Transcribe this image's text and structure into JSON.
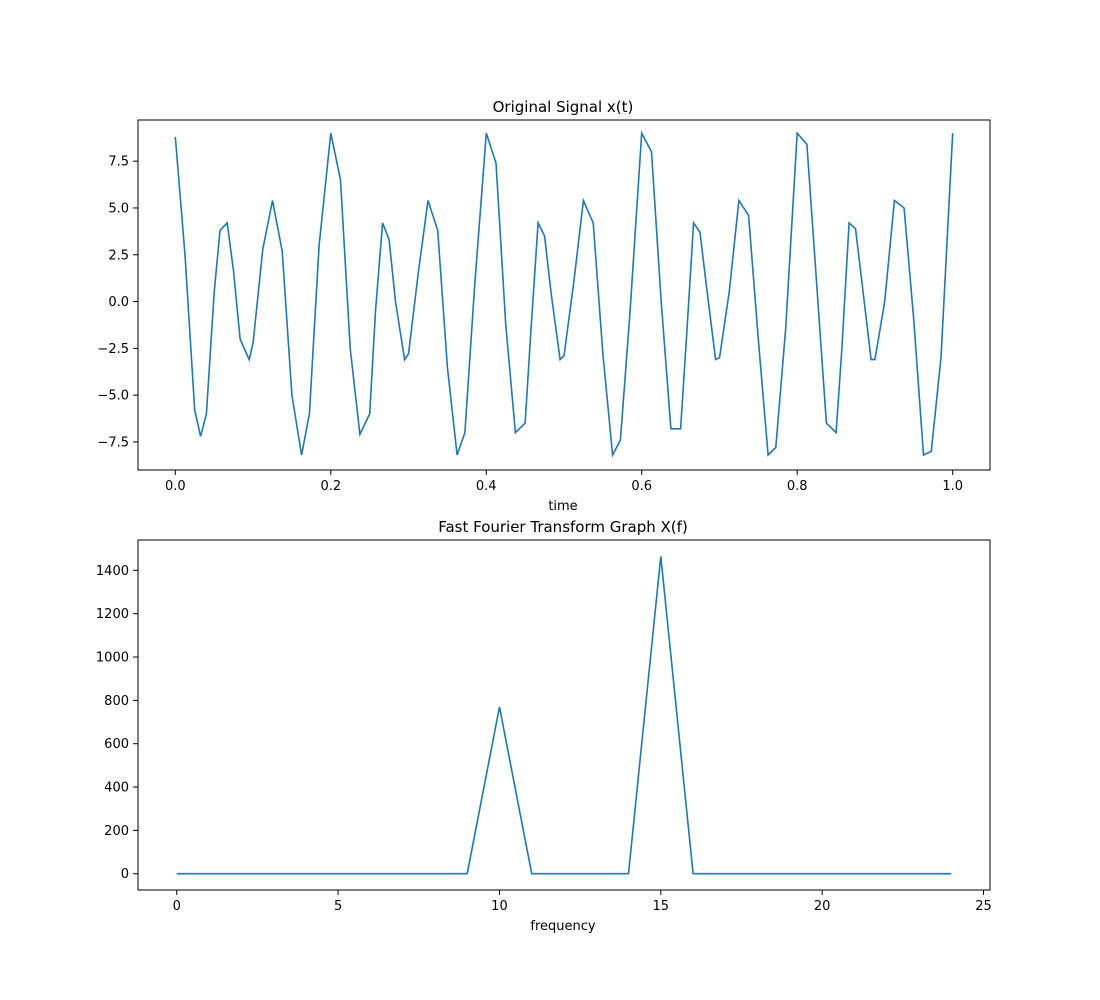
{
  "chart_data": [
    {
      "type": "line",
      "title": "Original Signal x(t)",
      "xlabel": "time",
      "ylabel": "",
      "xlim": [
        -0.048,
        1.048
      ],
      "ylim": [
        -9.0,
        9.7
      ],
      "xticks": [
        0.0,
        0.2,
        0.4,
        0.6,
        0.8,
        1.0
      ],
      "xtick_labels": [
        "0.0",
        "0.2",
        "0.4",
        "0.6",
        "0.8",
        "1.0"
      ],
      "yticks": [
        -7.5,
        -5.0,
        -2.5,
        0.0,
        2.5,
        5.0,
        7.5
      ],
      "ytick_labels": [
        "−7.5",
        "−5.0",
        "−2.5",
        "0.0",
        "2.5",
        "5.0",
        "7.5"
      ],
      "grid": false,
      "series": [
        {
          "color": "#1f77b4",
          "x": [
            0.0,
            0.0125,
            0.025,
            0.0325,
            0.04,
            0.05,
            0.0575,
            0.0667,
            0.075,
            0.0833,
            0.095,
            0.1,
            0.1125,
            0.125,
            0.1375,
            0.15,
            0.1625,
            0.1725,
            0.185,
            0.2,
            0.2125,
            0.225,
            0.2375,
            0.25,
            0.2575,
            0.2667,
            0.275,
            0.2833,
            0.295,
            0.3,
            0.3125,
            0.325,
            0.3375,
            0.35,
            0.3625,
            0.3725,
            0.385,
            0.4,
            0.4125,
            0.425,
            0.4375,
            0.45,
            0.4575,
            0.4667,
            0.475,
            0.4833,
            0.495,
            0.5,
            0.5125,
            0.525,
            0.5375,
            0.55,
            0.5625,
            0.5725,
            0.585,
            0.6,
            0.6125,
            0.625,
            0.6375,
            0.65,
            0.6575,
            0.6667,
            0.675,
            0.6833,
            0.695,
            0.7,
            0.7125,
            0.725,
            0.7375,
            0.75,
            0.7625,
            0.7725,
            0.785,
            0.8,
            0.8125,
            0.825,
            0.8375,
            0.85,
            0.8575,
            0.8667,
            0.875,
            0.8833,
            0.895,
            0.9,
            0.9125,
            0.925,
            0.9375,
            0.95,
            0.9625,
            0.9725,
            0.985,
            1.0
          ],
          "y": [
            8.8,
            2.5,
            -5.8,
            -7.2,
            -6.0,
            0.5,
            3.8,
            4.2,
            1.6,
            -2.0,
            -3.1,
            -2.2,
            2.8,
            5.4,
            2.7,
            -5.0,
            -8.2,
            -6.0,
            3.0,
            9.0,
            6.5,
            -2.5,
            -7.1,
            -6.0,
            -0.5,
            4.2,
            3.3,
            0.0,
            -3.1,
            -2.8,
            1.5,
            5.4,
            3.8,
            -3.5,
            -8.2,
            -7.0,
            0.8,
            9.0,
            7.4,
            -1.2,
            -7.0,
            -6.5,
            -1.5,
            4.2,
            3.5,
            0.5,
            -3.1,
            -2.9,
            1.0,
            5.4,
            4.2,
            -2.8,
            -8.2,
            -7.4,
            -0.5,
            9.0,
            8.0,
            0.0,
            -6.8,
            -6.8,
            -2.0,
            4.2,
            3.7,
            0.8,
            -3.1,
            -3.0,
            0.5,
            5.4,
            4.6,
            -2.0,
            -8.2,
            -7.8,
            -1.5,
            9.0,
            8.4,
            1.0,
            -6.5,
            -7.0,
            -2.5,
            4.2,
            3.9,
            1.0,
            -3.1,
            -3.1,
            0.0,
            5.4,
            5.0,
            -1.0,
            -8.2,
            -8.0,
            -3.0,
            9.0
          ]
        }
      ]
    },
    {
      "type": "line",
      "title": "Fast Fourier Transform Graph X(f)",
      "xlabel": "frequency",
      "ylabel": "",
      "xlim": [
        -1.2,
        25.2
      ],
      "ylim": [
        -75,
        1540
      ],
      "xticks": [
        0,
        5,
        10,
        15,
        20,
        25
      ],
      "xtick_labels": [
        "0",
        "5",
        "10",
        "15",
        "20",
        "25"
      ],
      "yticks": [
        0,
        200,
        400,
        600,
        800,
        1000,
        1200,
        1400
      ],
      "ytick_labels": [
        "0",
        "200",
        "400",
        "600",
        "800",
        "1000",
        "1200",
        "1400"
      ],
      "grid": false,
      "series": [
        {
          "color": "#1f77b4",
          "x": [
            0,
            9,
            10,
            11,
            14,
            15,
            16,
            24
          ],
          "y": [
            0,
            0,
            770,
            0,
            0,
            1465,
            0,
            0
          ]
        }
      ]
    }
  ]
}
